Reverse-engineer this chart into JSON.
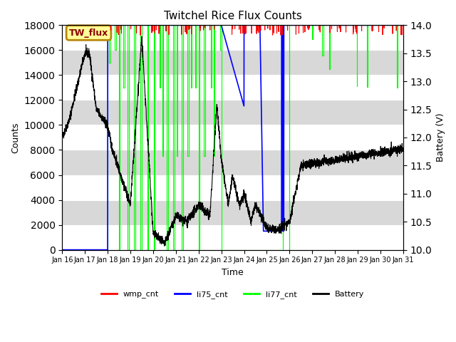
{
  "title": "Twitchel Rice Flux Counts",
  "xlabel": "Time",
  "ylabel_left": "Counts",
  "ylabel_right": "Battery (V)",
  "ylim_left": [
    0,
    18000
  ],
  "ylim_right": [
    10.0,
    14.0
  ],
  "yticks_left": [
    0,
    2000,
    4000,
    6000,
    8000,
    10000,
    12000,
    14000,
    16000,
    18000
  ],
  "yticks_right": [
    10.0,
    10.5,
    11.0,
    11.5,
    12.0,
    12.5,
    13.0,
    13.5,
    14.0
  ],
  "xtick_labels": [
    "Jan 16",
    "Jan 17",
    "Jan 18",
    "Jan 19",
    "Jan 20",
    "Jan 21",
    "Jan 22",
    "Jan 23",
    "Jan 24",
    "Jan 25",
    "Jan 26",
    "Jan 27",
    "Jan 28",
    "Jan 29",
    "Jan 30",
    "Jan 31"
  ],
  "xlim": [
    0,
    15
  ],
  "annotation_text": "TW_flux",
  "colors": {
    "wmp_cnt": "#ff0000",
    "li75_cnt": "#0000ff",
    "li77_cnt": "#00ff00",
    "battery": "#000000"
  },
  "background_color": "#ffffff",
  "alt_row_color": "#d8d8d8"
}
